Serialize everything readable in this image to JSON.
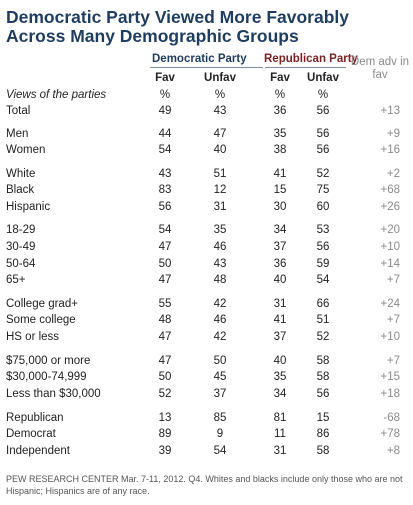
{
  "chart_data": {
    "type": "table",
    "title": "Democratic Party Viewed More Favorably Across Many Demographic Groups",
    "group_headers": {
      "dem": "Democratic Party",
      "rep": "Republican Party",
      "adv": "Dem adv in fav"
    },
    "columns": [
      "Fav",
      "Unfav",
      "Fav",
      "Unfav"
    ],
    "header_row": {
      "label": "Views of the parties",
      "units": [
        "%",
        "%",
        "%",
        "%"
      ]
    },
    "rows": [
      {
        "label": "Total",
        "dem_fav": "49",
        "dem_unfav": "43",
        "rep_fav": "36",
        "rep_unfav": "56",
        "adv": "+13"
      },
      {
        "label": "Men",
        "dem_fav": "44",
        "dem_unfav": "47",
        "rep_fav": "35",
        "rep_unfav": "56",
        "adv": "+9"
      },
      {
        "label": "Women",
        "dem_fav": "54",
        "dem_unfav": "40",
        "rep_fav": "38",
        "rep_unfav": "56",
        "adv": "+16"
      },
      {
        "label": "White",
        "dem_fav": "43",
        "dem_unfav": "51",
        "rep_fav": "41",
        "rep_unfav": "52",
        "adv": "+2"
      },
      {
        "label": "Black",
        "dem_fav": "83",
        "dem_unfav": "12",
        "rep_fav": "15",
        "rep_unfav": "75",
        "adv": "+68"
      },
      {
        "label": "Hispanic",
        "dem_fav": "56",
        "dem_unfav": "31",
        "rep_fav": "30",
        "rep_unfav": "60",
        "adv": "+26"
      },
      {
        "label": "18-29",
        "dem_fav": "54",
        "dem_unfav": "35",
        "rep_fav": "34",
        "rep_unfav": "53",
        "adv": "+20"
      },
      {
        "label": "30-49",
        "dem_fav": "47",
        "dem_unfav": "46",
        "rep_fav": "37",
        "rep_unfav": "56",
        "adv": "+10"
      },
      {
        "label": "50-64",
        "dem_fav": "50",
        "dem_unfav": "43",
        "rep_fav": "36",
        "rep_unfav": "59",
        "adv": "+14"
      },
      {
        "label": "65+",
        "dem_fav": "47",
        "dem_unfav": "48",
        "rep_fav": "40",
        "rep_unfav": "54",
        "adv": "+7"
      },
      {
        "label": "College grad+",
        "dem_fav": "55",
        "dem_unfav": "42",
        "rep_fav": "31",
        "rep_unfav": "66",
        "adv": "+24"
      },
      {
        "label": "Some college",
        "dem_fav": "48",
        "dem_unfav": "46",
        "rep_fav": "41",
        "rep_unfav": "51",
        "adv": "+7"
      },
      {
        "label": "HS or less",
        "dem_fav": "47",
        "dem_unfav": "42",
        "rep_fav": "37",
        "rep_unfav": "52",
        "adv": "+10"
      },
      {
        "label": "$75,000 or more",
        "dem_fav": "47",
        "dem_unfav": "50",
        "rep_fav": "40",
        "rep_unfav": "58",
        "adv": "+7"
      },
      {
        "label": "$30,000-74,999",
        "dem_fav": "50",
        "dem_unfav": "45",
        "rep_fav": "35",
        "rep_unfav": "58",
        "adv": "+15"
      },
      {
        "label": "Less than $30,000",
        "dem_fav": "52",
        "dem_unfav": "37",
        "rep_fav": "34",
        "rep_unfav": "56",
        "adv": "+18"
      },
      {
        "label": "Republican",
        "dem_fav": "13",
        "dem_unfav": "85",
        "rep_fav": "81",
        "rep_unfav": "15",
        "adv": "-68"
      },
      {
        "label": "Democrat",
        "dem_fav": "89",
        "dem_unfav": "9",
        "rep_fav": "11",
        "rep_unfav": "86",
        "adv": "+78"
      },
      {
        "label": "Independent",
        "dem_fav": "39",
        "dem_unfav": "54",
        "rep_fav": "31",
        "rep_unfav": "58",
        "adv": "+8"
      }
    ],
    "footnote": "PEW RESEARCH CENTER Mar. 7-11, 2012. Q4. Whites and blacks include only those who are not Hispanic; Hispanics are of any race."
  },
  "colors": {
    "title": "#1f3d5f",
    "dem": "#1f3d5f",
    "rep": "#7a2224",
    "adv": "#8a8a8a"
  }
}
